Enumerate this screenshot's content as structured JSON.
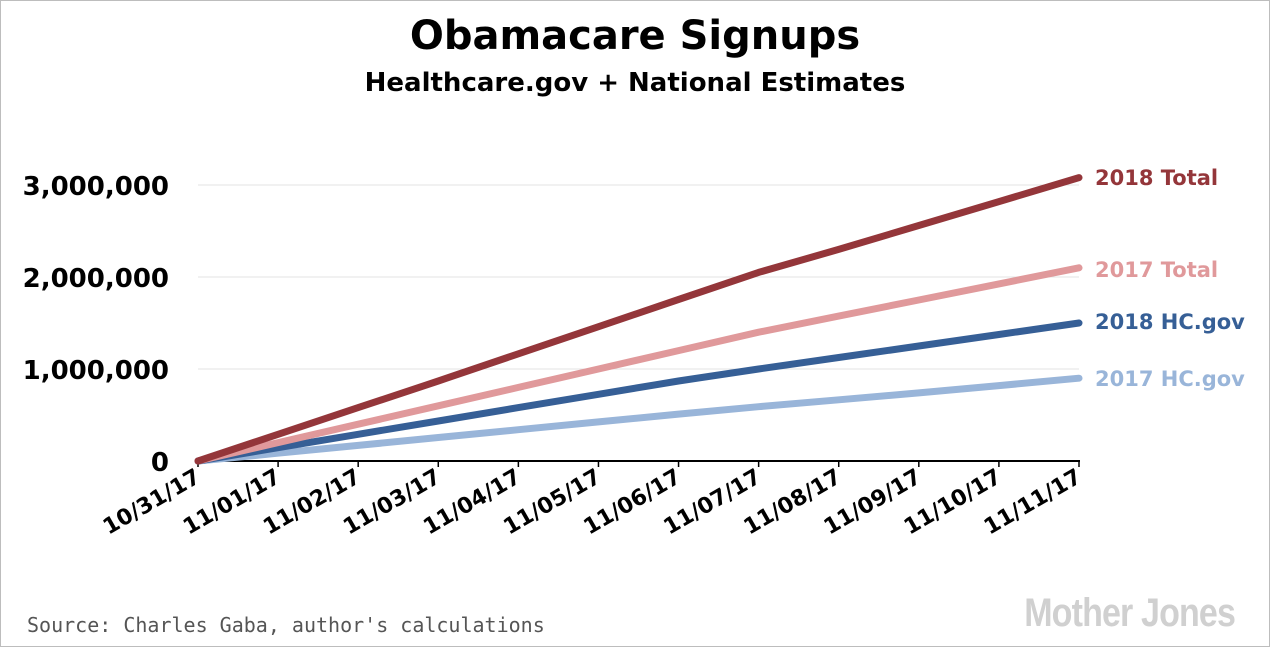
{
  "chart_data": {
    "type": "line",
    "title": "Obamacare Signups",
    "subtitle": "Healthcare.gov + National Estimates",
    "categories": [
      "10/31/17",
      "11/01/17",
      "11/02/17",
      "11/03/17",
      "11/04/17",
      "11/05/17",
      "11/06/17",
      "11/07/17",
      "11/08/17",
      "11/09/17",
      "11/10/17",
      "11/11/17"
    ],
    "ylim": [
      0,
      3000000
    ],
    "yticks": [
      {
        "value": 0,
        "label": "0"
      },
      {
        "value": 1000000,
        "label": "1,000,000"
      },
      {
        "value": 2000000,
        "label": "2,000,000"
      },
      {
        "value": 3000000,
        "label": "3,000,000"
      }
    ],
    "grid": true,
    "legend": "right, labels at line ends",
    "series": [
      {
        "name": "2018 Total",
        "color": "#94363a",
        "values": [
          0,
          290000,
          580000,
          870000,
          1165000,
          1460000,
          1755000,
          2050000,
          2300000,
          2560000,
          2820000,
          3080000
        ]
      },
      {
        "name": "2017 Total",
        "color": "#e0999b",
        "values": [
          0,
          200000,
          400000,
          600000,
          800000,
          1000000,
          1200000,
          1400000,
          1575000,
          1750000,
          1925000,
          2100000
        ]
      },
      {
        "name": "2018 HC.gov",
        "color": "#365f96",
        "values": [
          0,
          145000,
          290000,
          435000,
          580000,
          725000,
          870000,
          1000000,
          1125000,
          1250000,
          1375000,
          1500000
        ]
      },
      {
        "name": "2017 HC.gov",
        "color": "#99b5d9",
        "values": [
          0,
          85000,
          170000,
          255000,
          340000,
          425000,
          510000,
          590000,
          665000,
          740000,
          820000,
          900000
        ]
      }
    ]
  },
  "source": "Source: Charles Gaba, author's calculations",
  "brand": "Mother Jones"
}
